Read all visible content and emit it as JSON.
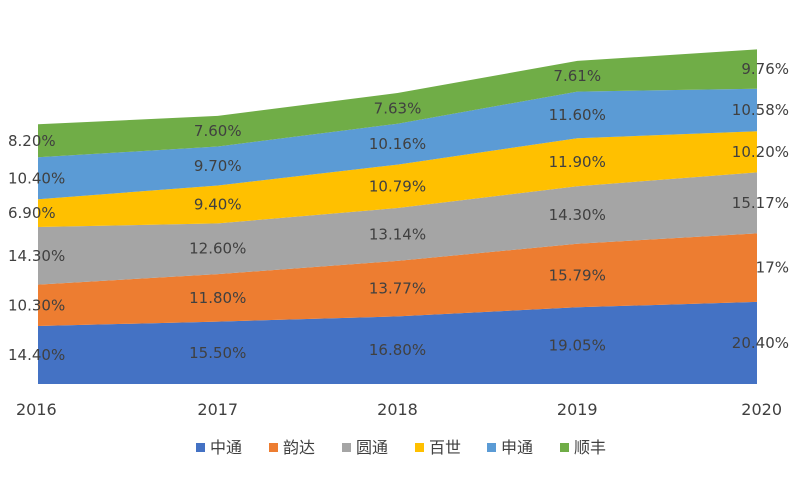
{
  "chart_data": {
    "type": "area",
    "stacked": true,
    "categories": [
      "2016",
      "2017",
      "2018",
      "2019",
      "2020"
    ],
    "series": [
      {
        "name": "中通",
        "color": "#4472C4",
        "values": [
          14.4,
          15.5,
          16.8,
          19.05,
          20.4
        ],
        "labels": [
          "14.40%",
          "15.50%",
          "16.80%",
          "19.05%",
          "20.40%"
        ]
      },
      {
        "name": "韵达",
        "color": "#ED7D31",
        "values": [
          10.3,
          11.8,
          13.77,
          15.79,
          17
        ],
        "labels": [
          "10.30%",
          "11.80%",
          "13.77%",
          "15.79%",
          "17%"
        ]
      },
      {
        "name": "圆通",
        "color": "#A5A5A5",
        "values": [
          14.3,
          12.6,
          13.14,
          14.3,
          15.17
        ],
        "labels": [
          "14.30%",
          "12.60%",
          "13.14%",
          "14.30%",
          "15.17%"
        ]
      },
      {
        "name": "百世",
        "color": "#FFC000",
        "values": [
          6.9,
          9.4,
          10.79,
          11.9,
          10.2
        ],
        "labels": [
          "6.90%",
          "9.40%",
          "10.79%",
          "11.90%",
          "10.20%"
        ]
      },
      {
        "name": "申通",
        "color": "#5B9BD5",
        "values": [
          10.4,
          9.7,
          10.16,
          11.6,
          10.58
        ],
        "labels": [
          "10.40%",
          "9.70%",
          "10.16%",
          "11.60%",
          "10.58%"
        ]
      },
      {
        "name": "顺丰",
        "color": "#70AD47",
        "values": [
          8.2,
          7.6,
          7.63,
          7.61,
          9.76
        ],
        "labels": [
          "8.20%",
          "7.60%",
          "7.63%",
          "7.61%",
          "9.76%"
        ]
      }
    ],
    "title": "",
    "xlabel": "",
    "ylabel": "",
    "grid": false,
    "legend_position": "bottom"
  }
}
